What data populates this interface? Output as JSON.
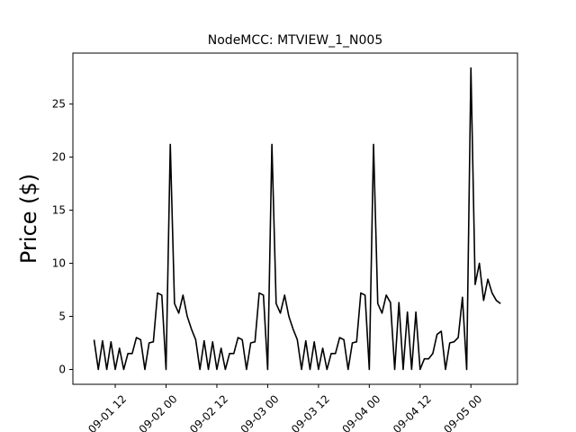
{
  "chart_data": {
    "type": "line",
    "title": "NodeMCC: MTVIEW_1_N005",
    "y_label": "Price ($)",
    "color": "#000000",
    "x": [
      "09-01 07",
      "09-01 08",
      "09-01 09",
      "09-01 10",
      "09-01 11",
      "09-01 12",
      "09-01 13",
      "09-01 14",
      "09-01 15",
      "09-01 16",
      "09-01 17",
      "09-01 18",
      "09-01 19",
      "09-01 20",
      "09-01 21",
      "09-01 22",
      "09-01 23",
      "09-02 00",
      "09-02 01",
      "09-02 02",
      "09-02 03",
      "09-02 04",
      "09-02 05",
      "09-02 06",
      "09-02 07",
      "09-02 08",
      "09-02 09",
      "09-02 10",
      "09-02 11",
      "09-02 12",
      "09-02 13",
      "09-02 14",
      "09-02 15",
      "09-02 16",
      "09-02 17",
      "09-02 18",
      "09-02 19",
      "09-02 20",
      "09-02 21",
      "09-02 22",
      "09-02 23",
      "09-03 00",
      "09-03 01",
      "09-03 02",
      "09-03 03",
      "09-03 04",
      "09-03 05",
      "09-03 06",
      "09-03 07",
      "09-03 08",
      "09-03 09",
      "09-03 10",
      "09-03 11",
      "09-03 12",
      "09-03 13",
      "09-03 14",
      "09-03 15",
      "09-03 16",
      "09-03 17",
      "09-03 18",
      "09-03 19",
      "09-03 20",
      "09-03 21",
      "09-03 22",
      "09-03 23",
      "09-04 00",
      "09-04 01",
      "09-04 02",
      "09-04 03",
      "09-04 04",
      "09-04 05",
      "09-04 06",
      "09-04 07",
      "09-04 08",
      "09-04 09",
      "09-04 10",
      "09-04 11",
      "09-04 12",
      "09-04 13",
      "09-04 14",
      "09-04 15",
      "09-04 16",
      "09-04 17",
      "09-04 18",
      "09-04 19",
      "09-04 20",
      "09-04 21",
      "09-04 22",
      "09-04 23",
      "09-05 00",
      "09-05 01",
      "09-05 02",
      "09-05 03",
      "09-05 04",
      "09-05 05",
      "09-05 06",
      "09-05 07"
    ],
    "values": [
      2.8,
      0,
      2.7,
      0,
      2.6,
      0,
      2.0,
      0,
      1.5,
      1.5,
      3.0,
      2.8,
      0,
      2.5,
      2.6,
      7.2,
      7.0,
      0,
      21.2,
      6.2,
      5.3,
      7.0,
      5.0,
      3.8,
      2.8,
      0,
      2.7,
      0,
      2.6,
      0,
      2.0,
      0,
      1.5,
      1.5,
      3.0,
      2.8,
      0,
      2.5,
      2.6,
      7.2,
      7.0,
      0,
      21.2,
      6.2,
      5.3,
      7.0,
      5.0,
      3.8,
      2.8,
      0,
      2.7,
      0,
      2.6,
      0,
      2.0,
      0,
      1.5,
      1.5,
      3.0,
      2.8,
      0,
      2.5,
      2.6,
      7.2,
      7.0,
      0,
      21.2,
      6.2,
      5.3,
      7.0,
      6.3,
      0,
      6.3,
      0,
      5.4,
      0,
      5.4,
      0,
      1.0,
      1.0,
      1.5,
      3.3,
      3.6,
      0,
      2.5,
      2.6,
      3.0,
      6.8,
      0,
      28.4,
      8.0,
      10.0,
      6.5,
      8.5,
      7.2,
      6.5,
      6.2
    ],
    "xlim": [
      "09-01 02",
      "09-05 11"
    ],
    "xticks": [
      "09-01 12",
      "09-02 00",
      "09-02 12",
      "09-03 00",
      "09-03 12",
      "09-04 00",
      "09-04 12",
      "09-05 00"
    ],
    "ylim": [
      -1.4,
      29.8
    ],
    "yticks": [
      0,
      5,
      10,
      15,
      20,
      25
    ]
  }
}
